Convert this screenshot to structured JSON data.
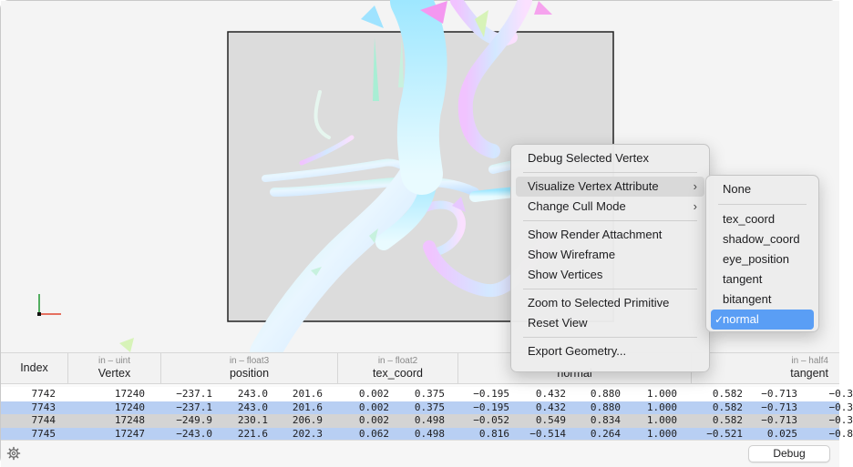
{
  "table": {
    "columns": [
      {
        "sub": "",
        "main": "Index"
      },
      {
        "sub": "in – uint",
        "main": "Vertex"
      },
      {
        "sub": "in – float3",
        "main": "position"
      },
      {
        "sub": "in – float2",
        "main": "tex_coord"
      },
      {
        "sub": "",
        "main": "normal"
      },
      {
        "sub": "in – half4",
        "main": "tangent"
      }
    ],
    "rows": [
      {
        "index": "7742",
        "vertex": "17240",
        "p": [
          "−237.1",
          "243.0",
          "201.6"
        ],
        "t": [
          "0.002",
          "0.375"
        ],
        "n": [
          "−0.195",
          "0.432",
          "0.880",
          "1.000"
        ],
        "g": [
          "0.582",
          "−0.713",
          "−0.3"
        ]
      },
      {
        "index": "7743",
        "vertex": "17240",
        "p": [
          "−237.1",
          "243.0",
          "201.6"
        ],
        "t": [
          "0.002",
          "0.375"
        ],
        "n": [
          "−0.195",
          "0.432",
          "0.880",
          "1.000"
        ],
        "g": [
          "0.582",
          "−0.713",
          "−0.3"
        ]
      },
      {
        "index": "7744",
        "vertex": "17248",
        "p": [
          "−249.9",
          "230.1",
          "206.9"
        ],
        "t": [
          "0.002",
          "0.498"
        ],
        "n": [
          "−0.052",
          "0.549",
          "0.834",
          "1.000"
        ],
        "g": [
          "0.582",
          "−0.713",
          "−0.3"
        ]
      },
      {
        "index": "7745",
        "vertex": "17247",
        "p": [
          "−243.0",
          "221.6",
          "202.3"
        ],
        "t": [
          "0.062",
          "0.498"
        ],
        "n": [
          "0.816",
          "−0.514",
          "0.264",
          "1.000"
        ],
        "g": [
          "−0.521",
          "0.025",
          "−0.8"
        ]
      }
    ]
  },
  "context_menu": {
    "debug_vertex": "Debug Selected Vertex",
    "visualize_attr": "Visualize Vertex Attribute",
    "cull_mode": "Change Cull Mode",
    "show_render_attachment": "Show Render Attachment",
    "show_wireframe": "Show Wireframe",
    "show_vertices": "Show Vertices",
    "zoom_primitive": "Zoom to Selected Primitive",
    "reset_view": "Reset View",
    "export_geometry": "Export Geometry..."
  },
  "submenu": {
    "none": "None",
    "tex_coord": "tex_coord",
    "shadow_coord": "shadow_coord",
    "eye_position": "eye_position",
    "tangent": "tangent",
    "bitangent": "bitangent",
    "normal": "normal",
    "selected": "normal"
  },
  "statusbar": {
    "debug_button": "Debug"
  },
  "colors": {
    "accent": "#5a9ef5",
    "row_selected": "#b8cff3",
    "viewport_bg": "#dcdcdc"
  }
}
